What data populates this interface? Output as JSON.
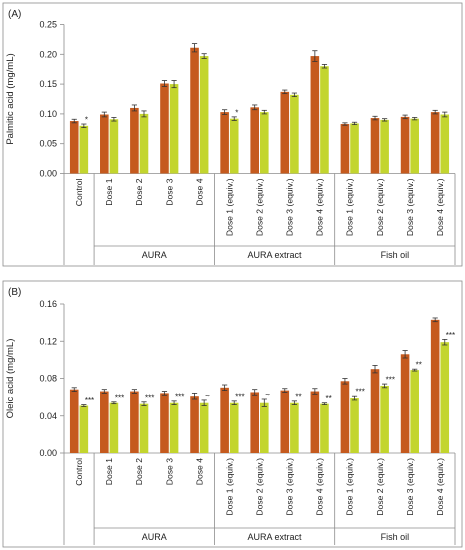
{
  "colors": {
    "series1": "#C55A1E",
    "series2": "#C3D52E",
    "frame": "#8c8c8c"
  },
  "chart_data": [
    {
      "type": "bar",
      "panel_label": "(A)",
      "ylabel": "Palmitic acid (mg/mL)",
      "ylim": [
        0,
        0.25
      ],
      "yticks": [
        "0.00",
        "0.05",
        "0.10",
        "0.15",
        "0.20",
        "0.25"
      ],
      "grid": false,
      "categories": [
        "Control",
        "Dose 1",
        "Dose 2",
        "Dose 3",
        "Dose 4",
        "Dose 1 (equiv.)",
        "Dose 2 (equiv.)",
        "Dose 3 (equiv.)",
        "Dose 4 (equiv.)",
        "Dose 1 (equiv.)",
        "Dose 2 (equiv.)",
        "Dose 3 (equiv.)",
        "Dose 4 (equiv.)"
      ],
      "groups": [
        {
          "label": "",
          "count": 1
        },
        {
          "label": "AURA",
          "count": 4
        },
        {
          "label": "AURA extract",
          "count": 4
        },
        {
          "label": "Fish oil",
          "count": 4
        }
      ],
      "series": [
        {
          "values": [
            0.088,
            0.099,
            0.11,
            0.151,
            0.211,
            0.103,
            0.111,
            0.137,
            0.197,
            0.083,
            0.093,
            0.095,
            0.103
          ],
          "errors": [
            0.003,
            0.004,
            0.005,
            0.005,
            0.007,
            0.004,
            0.004,
            0.003,
            0.009,
            0.002,
            0.003,
            0.003,
            0.003
          ]
        },
        {
          "values": [
            0.08,
            0.091,
            0.1,
            0.15,
            0.197,
            0.092,
            0.103,
            0.132,
            0.18,
            0.084,
            0.09,
            0.092,
            0.099
          ],
          "errors": [
            0.003,
            0.003,
            0.005,
            0.006,
            0.004,
            0.003,
            0.003,
            0.003,
            0.003,
            0.002,
            0.002,
            0.002,
            0.004
          ]
        }
      ],
      "significance": [
        "*",
        "",
        "",
        "",
        "",
        "*",
        "",
        "",
        "",
        "",
        "",
        "",
        ""
      ]
    },
    {
      "type": "bar",
      "panel_label": "(B)",
      "ylabel": "Oleic acid (mg/mL)",
      "ylim": [
        0,
        0.16
      ],
      "yticks": [
        "0.00",
        "0.04",
        "0.08",
        "0.12",
        "0.16"
      ],
      "grid": false,
      "categories": [
        "Control",
        "Dose 1",
        "Dose 2",
        "Dose 3",
        "Dose 4",
        "Dose 1 (equiv.)",
        "Dose 2 (equiv.)",
        "Dose 3 (equiv.)",
        "Dose 4 (equiv.)",
        "Dose 1 (equiv.)",
        "Dose 2 (equiv.)",
        "Dose 3 (equiv.)",
        "Dose 4 (equiv.)"
      ],
      "groups": [
        {
          "label": "",
          "count": 1
        },
        {
          "label": "AURA",
          "count": 4
        },
        {
          "label": "AURA extract",
          "count": 4
        },
        {
          "label": "Fish oil",
          "count": 4
        }
      ],
      "series": [
        {
          "values": [
            0.068,
            0.066,
            0.066,
            0.064,
            0.061,
            0.07,
            0.065,
            0.067,
            0.066,
            0.077,
            0.09,
            0.106,
            0.143
          ],
          "errors": [
            0.002,
            0.002,
            0.002,
            0.002,
            0.003,
            0.003,
            0.003,
            0.002,
            0.003,
            0.003,
            0.004,
            0.004,
            0.002
          ]
        },
        {
          "values": [
            0.051,
            0.054,
            0.053,
            0.054,
            0.054,
            0.054,
            0.054,
            0.054,
            0.053,
            0.059,
            0.072,
            0.089,
            0.119
          ],
          "errors": [
            0.001,
            0.001,
            0.002,
            0.002,
            0.003,
            0.002,
            0.004,
            0.002,
            0.001,
            0.002,
            0.002,
            0.001,
            0.003
          ]
        }
      ],
      "significance": [
        "***",
        "***",
        "***",
        "***",
        "~",
        "***",
        "~",
        "**",
        "**",
        "***",
        "***",
        "**",
        "***"
      ]
    }
  ]
}
